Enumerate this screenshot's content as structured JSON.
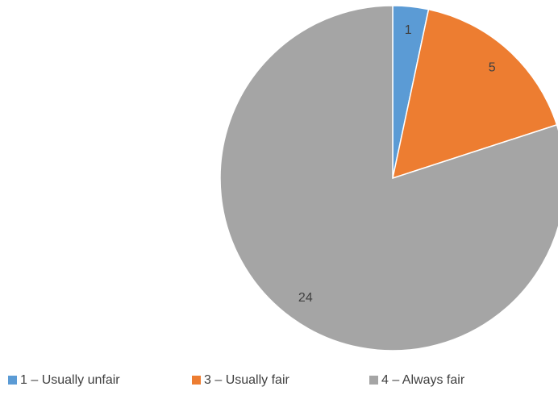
{
  "chart_data": {
    "type": "pie",
    "categories": [
      "1 – Usually unfair",
      "3 – Usually fair",
      "4 – Always fair"
    ],
    "values": [
      1,
      5,
      24
    ],
    "colors": [
      "#5b9bd5",
      "#ed7d31",
      "#a5a5a5"
    ],
    "legend": "bottom"
  }
}
